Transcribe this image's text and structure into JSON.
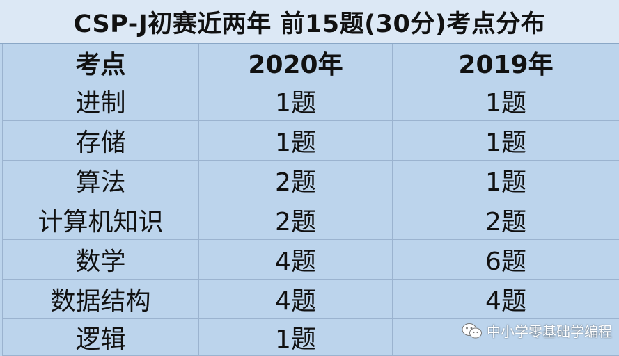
{
  "title": "CSP-J初赛近两年 前15题(30分)考点分布",
  "table": {
    "headers": [
      "考点",
      "2020年",
      "2019年"
    ],
    "rows": [
      {
        "topic": "进制",
        "y2020": "1题",
        "y2019": "1题"
      },
      {
        "topic": "存储",
        "y2020": "1题",
        "y2019": "1题"
      },
      {
        "topic": "算法",
        "y2020": "2题",
        "y2019": "1题"
      },
      {
        "topic": "计算机知识",
        "y2020": "2题",
        "y2019": "2题"
      },
      {
        "topic": "数学",
        "y2020": "4题",
        "y2019": "6题"
      },
      {
        "topic": "数据结构",
        "y2020": "4题",
        "y2019": "4题"
      },
      {
        "topic": "逻辑",
        "y2020": "1题",
        "y2019": ""
      }
    ]
  },
  "watermark": {
    "icon": "wechat-icon",
    "text": "中小学零基础学编程"
  },
  "colors": {
    "header_bg": "#dce8f5",
    "cell_bg": "#bcd4ec",
    "accent_bar": "#1aa34a"
  }
}
